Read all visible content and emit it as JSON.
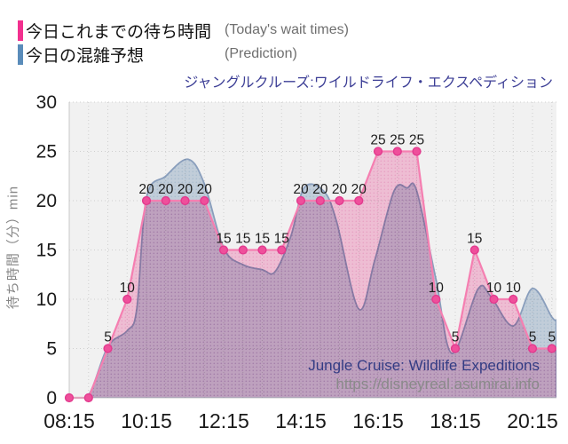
{
  "legend": {
    "items": [
      {
        "label_jp": "今日これまでの待ち時間",
        "label_en": "(Today's wait times)",
        "color": "#f2308f"
      },
      {
        "label_jp": "今日の混雑予想",
        "label_en": "(Prediction)",
        "color": "#5a8cba"
      }
    ]
  },
  "title": {
    "text": "ジャングルクルーズ:ワイルドライフ・エクスペディション",
    "color": "#3d3f96"
  },
  "watermark": {
    "line1": "Jungle Cruise: Wildlife Expeditions",
    "line2": "https://disneyreal.asumirai.info"
  },
  "chart_data": {
    "type": "line",
    "x_axis": {
      "tick_labels": [
        "08:15",
        "10:15",
        "12:15",
        "14:15",
        "16:15",
        "18:15",
        "20:15"
      ],
      "point_interval_minutes": 30
    },
    "y_axis": {
      "ticks": [
        0,
        5,
        10,
        15,
        20,
        25,
        30
      ],
      "label": "待ち時間（分）min",
      "max": 30
    },
    "grid": true,
    "legend_position": "top-left",
    "series": [
      {
        "name": "今日これまでの待ち時間 (Today's wait times)",
        "type": "line+markers+area",
        "times": [
          "08:15",
          "08:45",
          "09:15",
          "09:45",
          "10:15",
          "10:45",
          "11:15",
          "11:45",
          "12:15",
          "12:45",
          "13:15",
          "13:45",
          "14:15",
          "14:45",
          "15:15",
          "15:45",
          "16:15",
          "16:45",
          "17:15",
          "17:45",
          "18:15",
          "18:45",
          "19:15",
          "19:45",
          "20:15",
          "20:45"
        ],
        "values": [
          0,
          0,
          5,
          10,
          20,
          20,
          20,
          20,
          15,
          15,
          15,
          15,
          20,
          20,
          20,
          20,
          25,
          25,
          25,
          10,
          5,
          15,
          10,
          10,
          5,
          5
        ],
        "point_labels_shown_for_nonzero_values": true
      },
      {
        "name": "今日の混雑予想 (Prediction)",
        "type": "smooth-area",
        "estimated_keypoints": [
          [
            "08:15",
            0
          ],
          [
            "08:45",
            0.3
          ],
          [
            "09:15",
            5.2
          ],
          [
            "09:45",
            6.8
          ],
          [
            "10:00",
            9
          ],
          [
            "10:15",
            20.3
          ],
          [
            "10:45",
            22.5
          ],
          [
            "11:20",
            24.2
          ],
          [
            "11:45",
            21.7
          ],
          [
            "12:15",
            15.2
          ],
          [
            "12:45",
            13.5
          ],
          [
            "13:15",
            13
          ],
          [
            "13:35",
            12.8
          ],
          [
            "14:00",
            16.5
          ],
          [
            "14:20",
            21.3
          ],
          [
            "14:50",
            21
          ],
          [
            "15:10",
            18
          ],
          [
            "15:45",
            9
          ],
          [
            "16:10",
            14
          ],
          [
            "16:40",
            21
          ],
          [
            "17:00",
            21.3
          ],
          [
            "17:15",
            21
          ],
          [
            "17:45",
            12
          ],
          [
            "18:10",
            4.5
          ],
          [
            "18:50",
            11
          ],
          [
            "19:10",
            10.3
          ],
          [
            "19:45",
            7.3
          ],
          [
            "20:15",
            11.1
          ],
          [
            "20:45",
            8.2
          ],
          [
            "20:52",
            7.9
          ]
        ]
      }
    ]
  },
  "colors": {
    "actual_line": "#f57fb1",
    "actual_marker": "#ef4f9b",
    "actual_marker_stroke": "#e23a8e",
    "actual_area": "#fcc8e0",
    "actual_area_dot": "#f6abd0",
    "prediction_line": "#91a7c7",
    "prediction_area": "#ccd9e6",
    "prediction_area_dot": "#b4c8db",
    "plot_bg": "#f1f1f1",
    "grid": "#cfcfcf",
    "axis_border": "#c9c9c9",
    "axis_text": "#1a1a1a"
  }
}
